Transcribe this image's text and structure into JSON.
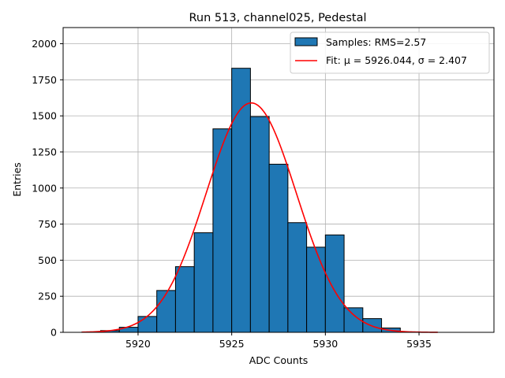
{
  "chart_data": {
    "type": "bar",
    "title": "Run 513, channel025, Pedestal",
    "xlabel": "ADC Counts",
    "ylabel": "Entries",
    "xlim": [
      5916.0,
      5939.0
    ],
    "ylim": [
      0,
      2112
    ],
    "xticks": [
      5920,
      5925,
      5930,
      5935
    ],
    "yticks": [
      0,
      250,
      500,
      750,
      1000,
      1250,
      1500,
      1750,
      2000
    ],
    "grid": true,
    "legend_position": "top-right",
    "histogram": {
      "label": "Samples: RMS=2.57",
      "color": "#1f77b4",
      "edge_color": "#000000",
      "bin_width": 1,
      "bins": [
        {
          "x0": 5917,
          "value": 2
        },
        {
          "x0": 5918,
          "value": 12
        },
        {
          "x0": 5919,
          "value": 35
        },
        {
          "x0": 5920,
          "value": 110
        },
        {
          "x0": 5921,
          "value": 290
        },
        {
          "x0": 5922,
          "value": 455
        },
        {
          "x0": 5923,
          "value": 690
        },
        {
          "x0": 5924,
          "value": 1410
        },
        {
          "x0": 5925,
          "value": 1830
        },
        {
          "x0": 5926,
          "value": 1495
        },
        {
          "x0": 5927,
          "value": 1165
        },
        {
          "x0": 5928,
          "value": 760
        },
        {
          "x0": 5929,
          "value": 590
        },
        {
          "x0": 5930,
          "value": 675
        },
        {
          "x0": 5931,
          "value": 170
        },
        {
          "x0": 5932,
          "value": 95
        },
        {
          "x0": 5933,
          "value": 30
        },
        {
          "x0": 5934,
          "value": 3
        }
      ]
    },
    "fit": {
      "label": "Fit: μ = 5926.044, σ = 2.407",
      "color": "#ff0000",
      "mu": 5926.044,
      "sigma": 2.407,
      "amplitude": 1590,
      "x_range": [
        5917,
        5936
      ]
    }
  }
}
